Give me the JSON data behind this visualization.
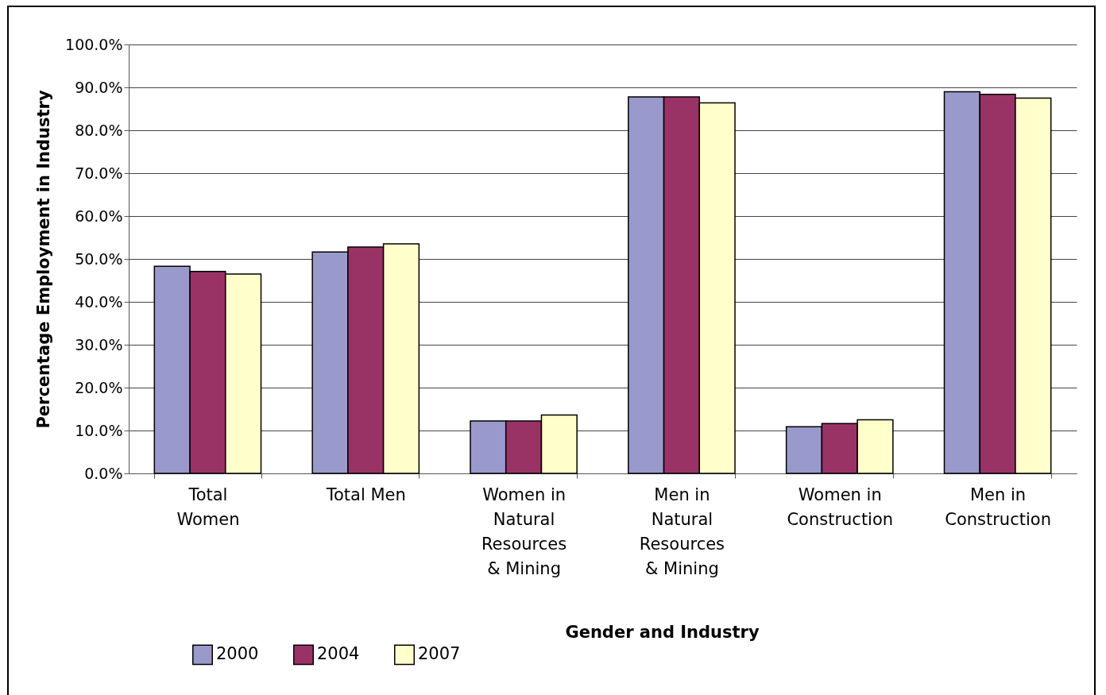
{
  "chart_data": {
    "type": "bar",
    "xlabel": "Gender and Industry",
    "ylabel": "Percentage Employment in Industry",
    "categories": [
      "Total Women",
      "Total Men",
      "Women in Natural Resources & Mining",
      "Men in Natural Resources & Mining",
      "Women in Construction",
      "Men in Construction"
    ],
    "series": [
      {
        "name": "2000",
        "color": "#9999cc",
        "values": [
          48.3,
          51.6,
          12.2,
          87.8,
          10.9,
          89.0
        ]
      },
      {
        "name": "2004",
        "color": "#993366",
        "values": [
          47.1,
          52.8,
          12.2,
          87.8,
          11.6,
          88.4
        ]
      },
      {
        "name": "2007",
        "color": "#ffffcc",
        "values": [
          46.5,
          53.5,
          13.6,
          86.4,
          12.5,
          87.5
        ]
      }
    ],
    "ylim": [
      0,
      100
    ],
    "yticks": [
      {
        "value": 0,
        "label": "0.0%"
      },
      {
        "value": 10,
        "label": "10.0%"
      },
      {
        "value": 20,
        "label": "20.0%"
      },
      {
        "value": 30,
        "label": "30.0%"
      },
      {
        "value": 40,
        "label": "40.0%"
      },
      {
        "value": 50,
        "label": "50.0%"
      },
      {
        "value": 60,
        "label": "60.0%"
      },
      {
        "value": 70,
        "label": "70.0%"
      },
      {
        "value": 80,
        "label": "80.0%"
      },
      {
        "value": 90,
        "label": "90.0%"
      },
      {
        "value": 100,
        "label": "100.0%"
      }
    ],
    "grid": "y",
    "legend": "bottom left"
  }
}
